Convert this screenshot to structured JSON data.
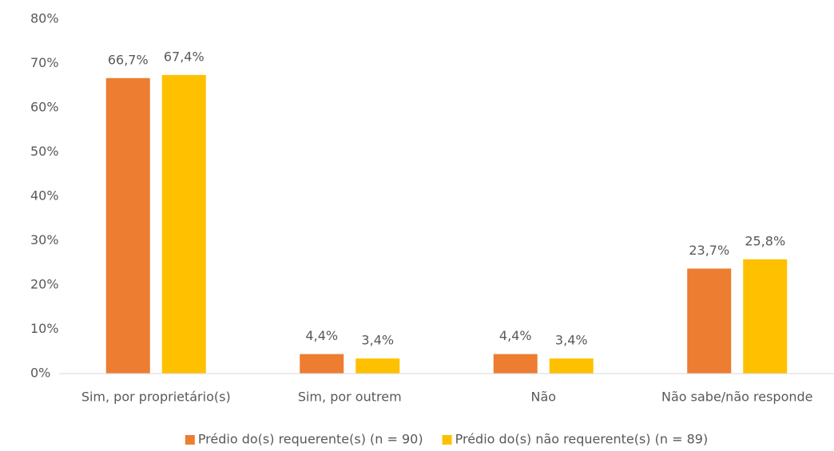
{
  "chart_data": {
    "type": "bar",
    "categories": [
      "Sim, por proprietário(s)",
      "Sim, por outrem",
      "Não",
      "Não sabe/não responde"
    ],
    "series": [
      {
        "name": "Prédio do(s) requerente(s) (n = 90)",
        "color": "#ED7D31",
        "values": [
          66.7,
          4.4,
          4.4,
          23.7
        ],
        "value_labels": [
          "66,7%",
          "4,4%",
          "4,4%",
          "23,7%"
        ]
      },
      {
        "name": "Prédio do(s) não requerente(s) (n = 89)",
        "color": "#FFC000",
        "values": [
          67.4,
          3.4,
          3.4,
          25.8
        ],
        "value_labels": [
          "67,4%",
          "3,4%",
          "3,4%",
          "25,8%"
        ]
      }
    ],
    "ylim": [
      0,
      80
    ],
    "yticks": [
      {
        "value": 0,
        "label": "0%"
      },
      {
        "value": 10,
        "label": "10%"
      },
      {
        "value": 20,
        "label": "20%"
      },
      {
        "value": 30,
        "label": "30%"
      },
      {
        "value": 40,
        "label": "40%"
      },
      {
        "value": 50,
        "label": "50%"
      },
      {
        "value": 60,
        "label": "60%"
      },
      {
        "value": 70,
        "label": "70%"
      },
      {
        "value": 80,
        "label": "80%"
      }
    ],
    "grid": false,
    "legend": "bottom"
  }
}
